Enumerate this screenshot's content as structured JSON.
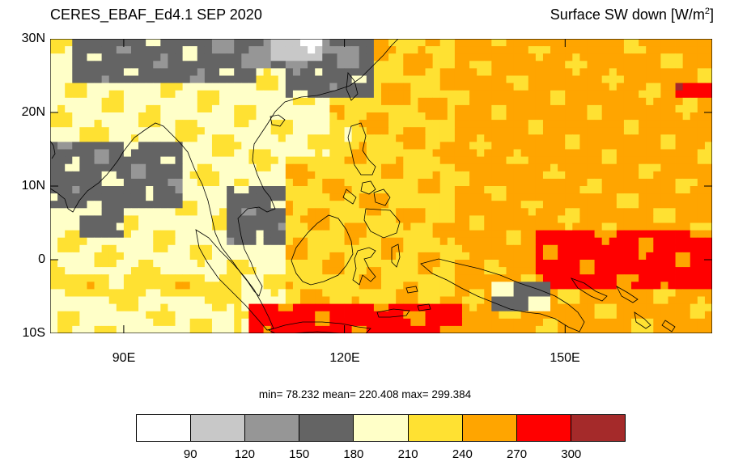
{
  "title": {
    "left": "CERES_EBAF_Ed4.1 SEP 2020",
    "right_main": "Surface SW down [W/m",
    "right_sup": "2",
    "right_end": "]"
  },
  "axes": {
    "lat_labels": [
      "30N",
      "20N",
      "10N",
      "0",
      "10S"
    ],
    "lon_labels": [
      "90E",
      "120E",
      "150E"
    ]
  },
  "stats": {
    "text": "min=  78.232  mean= 220.408  max= 299.384"
  },
  "colorbar": {
    "colors": [
      "#ffffff",
      "#c8c8c8",
      "#969696",
      "#646464",
      "#ffffc8",
      "#ffe132",
      "#ffa500",
      "#ff0000",
      "#a52a2a"
    ],
    "labels": [
      "90",
      "120",
      "150",
      "180",
      "210",
      "240",
      "270",
      "300"
    ]
  },
  "map": {
    "extent": {
      "lon_min": 80,
      "lon_max": 170,
      "lat_min": -10,
      "lat_max": 30
    }
  }
}
